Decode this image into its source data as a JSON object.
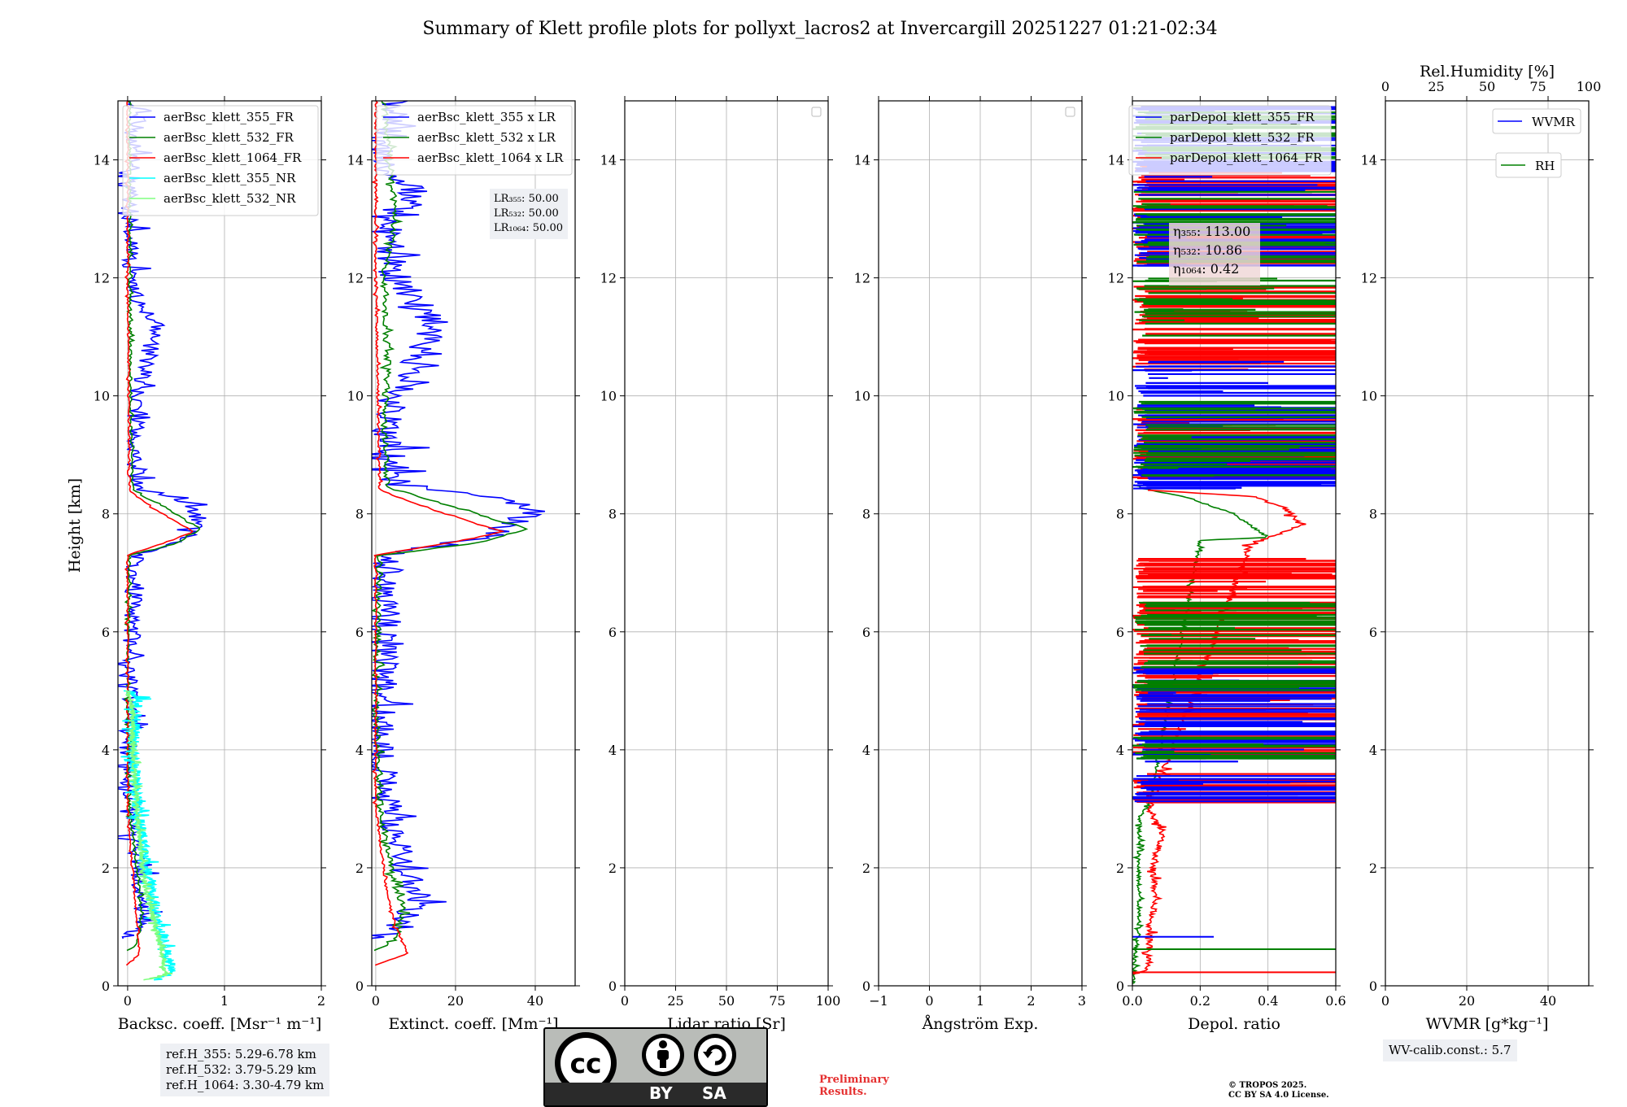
{
  "title": "Summary of Klett profile plots for pollyxt_lacros2 at Invercargill 20251227 01:21-02:34",
  "colors": {
    "c355": "#0000ff",
    "c532": "#008000",
    "c1064": "#ff0000",
    "nr355": "#00ffff",
    "nr532": "#80ff80",
    "grid": "#b0b0b0"
  },
  "chart_data": [
    {
      "type": "line",
      "id": "bsc",
      "xlabel": "Backsc. coeff. [Msr⁻¹ m⁻¹]",
      "ylabel": "Height [km]",
      "xlim": [
        -0.1,
        2.0
      ],
      "ylim": [
        0,
        15
      ],
      "xticks": [
        0,
        1,
        2
      ],
      "xtick_labels": [
        "0",
        "1",
        "2"
      ],
      "yticks": [
        0,
        2,
        4,
        6,
        8,
        10,
        12,
        14
      ],
      "ytick_labels": [
        "0",
        "2",
        "4",
        "6",
        "8",
        "10",
        "12",
        "14"
      ],
      "legend": [
        "aerBsc_klett_355_FR",
        "aerBsc_klett_532_FR",
        "aerBsc_klett_1064_FR",
        "aerBsc_klett_355_NR",
        "aerBsc_klett_532_NR"
      ],
      "series": [
        {
          "name": "aerBsc_klett_355_FR",
          "color": "c355",
          "noise": 0.09,
          "seed": 11,
          "points": [
            [
              0,
              0.8
            ],
            [
              0.05,
              0.9
            ],
            [
              0.15,
              1.0
            ],
            [
              0.15,
              1.5
            ],
            [
              0.1,
              2.0
            ],
            [
              0.03,
              3.0
            ],
            [
              0.0,
              4.0
            ],
            [
              0.05,
              6.0
            ],
            [
              0.08,
              7.3
            ],
            [
              0.55,
              7.55
            ],
            [
              0.78,
              7.8
            ],
            [
              0.6,
              8.2
            ],
            [
              0.1,
              8.45
            ],
            [
              0.05,
              9.0
            ],
            [
              0.1,
              10.0
            ],
            [
              0.3,
              11.2
            ],
            [
              0.1,
              11.6
            ],
            [
              0.02,
              12.5
            ],
            [
              0.05,
              14.0
            ],
            [
              0.1,
              15.0
            ]
          ]
        },
        {
          "name": "aerBsc_klett_532_FR",
          "color": "c532",
          "noise": 0.015,
          "seed": 23,
          "points": [
            [
              0,
              0.6
            ],
            [
              0.1,
              0.7
            ],
            [
              0.15,
              1.2
            ],
            [
              0.13,
              1.6
            ],
            [
              0.08,
              2.2
            ],
            [
              0.02,
              3.0
            ],
            [
              0.0,
              5.0
            ],
            [
              0.02,
              7.3
            ],
            [
              0.5,
              7.5
            ],
            [
              0.75,
              7.75
            ],
            [
              0.4,
              8.1
            ],
            [
              0.05,
              8.4
            ],
            [
              0.03,
              10.0
            ],
            [
              0.02,
              13.0
            ],
            [
              0.02,
              15.0
            ]
          ]
        },
        {
          "name": "aerBsc_klett_1064_FR",
          "color": "c1064",
          "noise": 0.01,
          "seed": 31,
          "points": [
            [
              0,
              0.35
            ],
            [
              0.12,
              0.55
            ],
            [
              0.1,
              1.0
            ],
            [
              0.05,
              2.0
            ],
            [
              0.0,
              3.0
            ],
            [
              0.0,
              7.3
            ],
            [
              0.45,
              7.55
            ],
            [
              0.68,
              7.7
            ],
            [
              0.3,
              8.05
            ],
            [
              0.02,
              8.4
            ],
            [
              0.0,
              12.0
            ],
            [
              0.0,
              15.0
            ]
          ]
        },
        {
          "name": "aerBsc_klett_355_NR",
          "color": "nr355",
          "noise": 0.06,
          "seed": 41,
          "points": [
            [
              0.3,
              0.1
            ],
            [
              0.45,
              0.25
            ],
            [
              0.4,
              0.6
            ],
            [
              0.3,
              1.2
            ],
            [
              0.2,
              2.0
            ],
            [
              0.1,
              3.0
            ],
            [
              0.05,
              4.0
            ],
            [
              0.1,
              4.9
            ],
            [
              0.0,
              5.0
            ]
          ]
        },
        {
          "name": "aerBsc_klett_532_NR",
          "color": "nr532",
          "noise": 0.03,
          "seed": 53,
          "points": [
            [
              0.2,
              0.1
            ],
            [
              0.4,
              0.2
            ],
            [
              0.35,
              0.6
            ],
            [
              0.25,
              1.2
            ],
            [
              0.15,
              2.0
            ],
            [
              0.1,
              3.0
            ],
            [
              0.05,
              4.0
            ],
            [
              0.05,
              4.7
            ],
            [
              0.0,
              5.0
            ]
          ]
        }
      ]
    },
    {
      "type": "line",
      "id": "ext",
      "xlabel": "Extinct. coeff. [Mm⁻¹]",
      "ylabel": "",
      "xlim": [
        -1,
        50
      ],
      "ylim": [
        0,
        15
      ],
      "xticks": [
        0,
        20,
        40
      ],
      "xtick_labels": [
        "0",
        "20",
        "40"
      ],
      "yticks": [
        0,
        2,
        4,
        6,
        8,
        10,
        12,
        14
      ],
      "ytick_labels": [
        "0",
        "2",
        "4",
        "6",
        "8",
        "10",
        "12",
        "14"
      ],
      "legend": [
        "aerBsc_klett_355 x LR",
        "aerBsc_klett_532 x LR",
        "aerBsc_klett_1064 x LR"
      ],
      "annotation": [
        "LR₃₅₅: 50.00",
        "LR₅₃₂: 50.00",
        "LR₁₀₆₄: 50.00"
      ],
      "series": [
        {
          "name": "aerBsc_klett_355 x LR",
          "color": "c355",
          "noise": 4.0,
          "seed": 61,
          "points": [
            [
              0,
              0.8
            ],
            [
              5,
              0.9
            ],
            [
              8,
              1.2
            ],
            [
              10,
              1.55
            ],
            [
              7,
              2.0
            ],
            [
              3,
              3.0
            ],
            [
              0.5,
              4.0
            ],
            [
              2,
              6.0
            ],
            [
              3,
              7.3
            ],
            [
              28,
              7.6
            ],
            [
              40,
              8.1
            ],
            [
              30,
              8.3
            ],
            [
              5,
              8.5
            ],
            [
              3,
              9.5
            ],
            [
              5,
              10.0
            ],
            [
              15,
              11.2
            ],
            [
              5,
              12.0
            ],
            [
              2,
              13.0
            ],
            [
              10,
              13.4
            ],
            [
              1,
              14.0
            ],
            [
              5,
              15.0
            ]
          ]
        },
        {
          "name": "aerBsc_klett_532 x LR",
          "color": "c532",
          "noise": 0.8,
          "seed": 71,
          "points": [
            [
              0,
              0.6
            ],
            [
              5,
              0.8
            ],
            [
              7,
              1.3
            ],
            [
              5,
              1.7
            ],
            [
              3,
              2.3
            ],
            [
              1,
              3.0
            ],
            [
              0,
              5.0
            ],
            [
              1,
              7.3
            ],
            [
              25,
              7.5
            ],
            [
              38,
              7.75
            ],
            [
              20,
              8.1
            ],
            [
              3,
              8.45
            ],
            [
              2,
              9.5
            ],
            [
              3,
              10.5
            ],
            [
              2,
              12.0
            ],
            [
              5,
              13.0
            ],
            [
              2,
              15.0
            ]
          ]
        },
        {
          "name": "aerBsc_klett_1064 x LR",
          "color": "c1064",
          "noise": 0.3,
          "seed": 81,
          "points": [
            [
              0,
              0.35
            ],
            [
              8,
              0.55
            ],
            [
              5,
              1.0
            ],
            [
              3,
              1.5
            ],
            [
              2,
              2.0
            ],
            [
              0,
              3.0
            ],
            [
              0,
              7.3
            ],
            [
              22,
              7.55
            ],
            [
              32,
              7.7
            ],
            [
              15,
              8.05
            ],
            [
              1,
              8.4
            ],
            [
              0,
              12.0
            ],
            [
              0,
              15.0
            ]
          ]
        }
      ]
    },
    {
      "type": "line",
      "id": "lr",
      "xlabel": "Lidar ratio [Sr]",
      "ylabel": "",
      "xlim": [
        0,
        100
      ],
      "ylim": [
        0,
        15
      ],
      "xticks": [
        0,
        25,
        50,
        75,
        100
      ],
      "xtick_labels": [
        "0",
        "25",
        "50",
        "75",
        "100"
      ],
      "yticks": [
        0,
        2,
        4,
        6,
        8,
        10,
        12,
        14
      ],
      "ytick_labels": [
        "0",
        "2",
        "4",
        "6",
        "8",
        "10",
        "12",
        "14"
      ],
      "legend": [],
      "empty_legend": true,
      "series": []
    },
    {
      "type": "line",
      "id": "ang",
      "xlabel": "Ångström Exp.",
      "ylabel": "",
      "xlim": [
        -1,
        3
      ],
      "ylim": [
        0,
        15
      ],
      "xticks": [
        -1,
        0,
        1,
        2,
        3
      ],
      "xtick_labels": [
        "−1",
        "0",
        "1",
        "2",
        "3"
      ],
      "yticks": [
        0,
        2,
        4,
        6,
        8,
        10,
        12,
        14
      ],
      "ytick_labels": [
        "0",
        "2",
        "4",
        "6",
        "8",
        "10",
        "12",
        "14"
      ],
      "legend": [],
      "empty_legend": true,
      "series": []
    },
    {
      "type": "line",
      "id": "dep",
      "xlabel": "Depol. ratio",
      "ylabel": "",
      "xlim": [
        0,
        0.6
      ],
      "ylim": [
        0,
        15
      ],
      "xticks": [
        0,
        0.2,
        0.4,
        0.6
      ],
      "xtick_labels": [
        "0.0",
        "0.2",
        "0.4",
        "0.6"
      ],
      "yticks": [
        0,
        2,
        4,
        6,
        8,
        10,
        12,
        14
      ],
      "ytick_labels": [
        "0",
        "2",
        "4",
        "6",
        "8",
        "10",
        "12",
        "14"
      ],
      "legend": [
        "parDepol_klett_355_FR",
        "parDepol_klett_532_FR",
        "parDepol_klett_1064_FR"
      ],
      "annotation": [
        "η₃₅₅: 113.00",
        "η₅₃₂: 10.86",
        "η₁₀₆₄: 0.42"
      ],
      "series": [
        {
          "name": "parDepol_klett_532_FR",
          "color": "c532",
          "noise": 0.006,
          "seed": 91,
          "points": [
            [
              0.002,
              0.0
            ],
            [
              0.01,
              0.5
            ],
            [
              0.02,
              1.0
            ],
            [
              0.02,
              2.0
            ],
            [
              0.02,
              2.8
            ],
            [
              0.05,
              3.1
            ],
            [
              0.2,
              7.55
            ],
            [
              0.4,
              7.6
            ],
            [
              0.3,
              8.0
            ],
            [
              0.15,
              8.3
            ],
            [
              0.05,
              8.4
            ],
            [
              0.0,
              8.5
            ]
          ]
        },
        {
          "name": "parDepol_klett_1064_FR",
          "color": "c1064",
          "noise": 0.01,
          "seed": 101,
          "points": [
            [
              0.003,
              0.2
            ],
            [
              0.05,
              0.3
            ],
            [
              0.05,
              1.0
            ],
            [
              0.07,
              1.5
            ],
            [
              0.06,
              2.0
            ],
            [
              0.09,
              2.6
            ],
            [
              0.05,
              3.0
            ],
            [
              0.35,
              7.5
            ],
            [
              0.5,
              7.8
            ],
            [
              0.45,
              8.1
            ],
            [
              0.35,
              8.3
            ],
            [
              0.05,
              8.4
            ]
          ]
        }
      ],
      "bursts": [
        {
          "color": "c1064",
          "ranges": [
            [
              3.1,
              3.6
            ],
            [
              3.9,
              6.8
            ],
            [
              6.7,
              7.3
            ],
            [
              8.6,
              9.8
            ],
            [
              10.4,
              11.9
            ],
            [
              12.2,
              13.9
            ]
          ],
          "density": 38,
          "seed": 111
        },
        {
          "color": "c355",
          "ranges": [
            [
              3.1,
              3.6
            ],
            [
              3.8,
              5.4
            ],
            [
              8.4,
              10.6
            ],
            [
              12.2,
              14.9
            ]
          ],
          "density": 34,
          "seed": 121
        },
        {
          "color": "c532",
          "ranges": [
            [
              3.8,
              4.3
            ],
            [
              5.0,
              6.6
            ],
            [
              8.6,
              9.9
            ],
            [
              11.0,
              12.0
            ],
            [
              12.2,
              13.5
            ],
            [
              14.0,
              14.9
            ]
          ],
          "density": 24,
          "seed": 131
        }
      ],
      "spikes": [
        {
          "color": "c355",
          "y": 0.83,
          "x": 0.24
        },
        {
          "color": "c532",
          "y": 0.62,
          "x": 0.6
        },
        {
          "color": "c1064",
          "y": 0.23,
          "x": 0.6
        }
      ]
    },
    {
      "type": "line",
      "id": "wv",
      "xlabel": "WVMR [g*kg⁻¹]",
      "ylabel": "",
      "xlim": [
        0,
        50
      ],
      "ylim": [
        0,
        15
      ],
      "xticks": [
        0,
        20,
        40
      ],
      "xtick_labels": [
        "0",
        "20",
        "40"
      ],
      "yticks": [
        0,
        2,
        4,
        6,
        8,
        10,
        12,
        14
      ],
      "ytick_labels": [
        "0",
        "2",
        "4",
        "6",
        "8",
        "10",
        "12",
        "14"
      ],
      "top_xlabel": "Rel.Humidity [%]",
      "top_xlim": [
        0,
        100
      ],
      "top_xticks": [
        0,
        25,
        50,
        75,
        100
      ],
      "top_xtick_labels": [
        "0",
        "25",
        "50",
        "75",
        "100"
      ],
      "legend": [
        "WVMR",
        "RH"
      ],
      "series": []
    }
  ],
  "info_boxes": {
    "ref_heights": [
      "ref.H_355: 5.29-6.78 km",
      "ref.H_532: 3.79-5.29 km",
      "ref.H_1064: 3.30-4.79 km"
    ],
    "wv_calib": "WV-calib.const.: 5.7"
  },
  "license": {
    "by": "BY",
    "sa": "SA",
    "cc": "cc"
  },
  "preliminary": [
    "Preliminary",
    "Results."
  ],
  "copyright": [
    "© TROPOS 2025.",
    "CC BY SA 4.0 License."
  ]
}
